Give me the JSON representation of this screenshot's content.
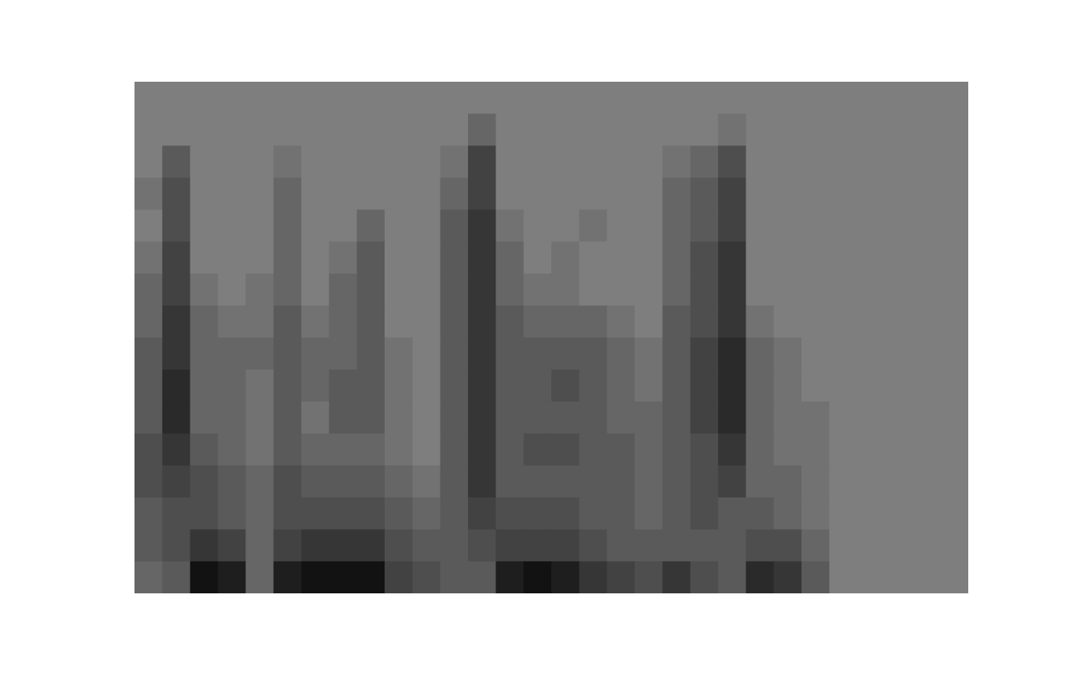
{
  "chart_data": {
    "type": "heatmap",
    "tick_labels": false,
    "zlim": [
      0,
      9
    ],
    "cells": [
      [
        0,
        0,
        0,
        0,
        0,
        0,
        0,
        0,
        0,
        0,
        0,
        0,
        0,
        0,
        0,
        0,
        0,
        0,
        0,
        0,
        0,
        0,
        0,
        0,
        0,
        0,
        0,
        0,
        0,
        0
      ],
      [
        0,
        0,
        0,
        0,
        0,
        0,
        0,
        0,
        0,
        0,
        0,
        0,
        2,
        0,
        0,
        0,
        0,
        0,
        0,
        0,
        0,
        1,
        0,
        0,
        0,
        0,
        0,
        0,
        0,
        0
      ],
      [
        0,
        3,
        0,
        0,
        0,
        1,
        0,
        0,
        0,
        0,
        0,
        1,
        5,
        0,
        0,
        0,
        0,
        0,
        0,
        1,
        2,
        4,
        0,
        0,
        0,
        0,
        0,
        0,
        0,
        0
      ],
      [
        1,
        4,
        0,
        0,
        0,
        2,
        0,
        0,
        0,
        0,
        0,
        2,
        5,
        0,
        0,
        0,
        0,
        0,
        0,
        2,
        3,
        5,
        0,
        0,
        0,
        0,
        0,
        0,
        0,
        0
      ],
      [
        0,
        4,
        0,
        0,
        0,
        2,
        0,
        0,
        2,
        0,
        0,
        3,
        6,
        1,
        0,
        0,
        1,
        0,
        0,
        2,
        3,
        5,
        0,
        0,
        0,
        0,
        0,
        0,
        0,
        0
      ],
      [
        1,
        5,
        0,
        0,
        0,
        2,
        0,
        1,
        3,
        0,
        0,
        3,
        6,
        2,
        0,
        1,
        0,
        0,
        0,
        2,
        4,
        6,
        0,
        0,
        0,
        0,
        0,
        0,
        0,
        0
      ],
      [
        2,
        5,
        1,
        0,
        1,
        2,
        0,
        2,
        3,
        0,
        0,
        3,
        6,
        2,
        1,
        1,
        0,
        0,
        0,
        2,
        4,
        6,
        0,
        0,
        0,
        0,
        0,
        0,
        0,
        0
      ],
      [
        2,
        6,
        2,
        1,
        1,
        3,
        1,
        2,
        3,
        0,
        0,
        3,
        6,
        3,
        2,
        2,
        2,
        1,
        0,
        3,
        4,
        6,
        1,
        0,
        0,
        0,
        0,
        0,
        0,
        0
      ],
      [
        3,
        6,
        2,
        2,
        2,
        3,
        2,
        2,
        3,
        1,
        0,
        3,
        6,
        3,
        3,
        3,
        3,
        2,
        1,
        3,
        5,
        7,
        2,
        1,
        0,
        0,
        0,
        0,
        0,
        0
      ],
      [
        3,
        7,
        2,
        2,
        1,
        3,
        2,
        3,
        3,
        1,
        0,
        3,
        6,
        3,
        3,
        4,
        3,
        2,
        1,
        3,
        5,
        7,
        2,
        1,
        0,
        0,
        0,
        0,
        0,
        0
      ],
      [
        3,
        7,
        2,
        2,
        1,
        3,
        1,
        3,
        3,
        1,
        0,
        3,
        6,
        3,
        3,
        3,
        3,
        2,
        2,
        3,
        5,
        7,
        2,
        1,
        1,
        0,
        0,
        0,
        0,
        0
      ],
      [
        4,
        6,
        3,
        2,
        1,
        3,
        2,
        2,
        2,
        1,
        0,
        3,
        6,
        3,
        4,
        4,
        3,
        3,
        2,
        3,
        4,
        6,
        2,
        1,
        1,
        0,
        0,
        0,
        0,
        0
      ],
      [
        4,
        5,
        4,
        3,
        2,
        4,
        3,
        3,
        3,
        2,
        1,
        3,
        6,
        3,
        3,
        3,
        3,
        3,
        2,
        3,
        4,
        5,
        2,
        2,
        1,
        0,
        0,
        0,
        0,
        0
      ],
      [
        3,
        4,
        4,
        3,
        2,
        4,
        4,
        4,
        4,
        3,
        2,
        3,
        5,
        4,
        4,
        4,
        3,
        3,
        2,
        3,
        4,
        3,
        3,
        2,
        1,
        0,
        0,
        0,
        0,
        0
      ],
      [
        3,
        4,
        6,
        5,
        2,
        5,
        6,
        6,
        6,
        4,
        3,
        3,
        4,
        5,
        5,
        5,
        4,
        3,
        3,
        3,
        3,
        3,
        4,
        4,
        2,
        0,
        0,
        0,
        0,
        0
      ],
      [
        2,
        3,
        9,
        8,
        2,
        8,
        9,
        9,
        9,
        5,
        4,
        3,
        3,
        8,
        9,
        8,
        6,
        5,
        4,
        6,
        4,
        3,
        7,
        6,
        3,
        0,
        0,
        0,
        0,
        0
      ]
    ]
  }
}
